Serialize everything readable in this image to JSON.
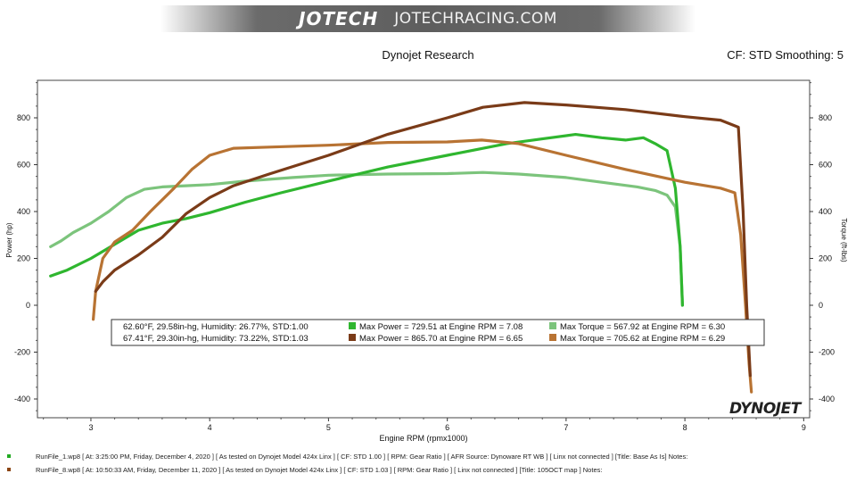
{
  "banner": {
    "brand": "JOTECH",
    "url": "JOTECHRACING.COM"
  },
  "header": {
    "title": "Dynojet Research",
    "right": "CF: STD Smoothing: 5"
  },
  "logo": {
    "text": "DYNOJET"
  },
  "footer": [
    {
      "text": "RunFile_1.wp8 [ At: 3:25:00 PM, Friday, December 4, 2020 ] [ As tested on Dynojet Model 424x Linx ] [ CF: STD 1.00 ] [ RPM: Gear Ratio ] [ AFR Source: Dynoware RT WB ] [ Linx not connected ] [Title: Base As Is]  Notes:",
      "color": "#22aa22"
    },
    {
      "text": "RunFile_8.wp8 [ At: 10:50:33 AM, Friday, December 11, 2020 ] [ As tested on Dynojet Model 424x Linx ] [ CF: STD 1.03 ] [ RPM: Gear Ratio ] [ Linx not connected ] [Title: 105OCT map ]  Notes:",
      "color": "#8b4513"
    }
  ],
  "chart_data": {
    "type": "line",
    "xlabel": "Engine RPM (rpmx1000)",
    "ylabel": "Power (hp)",
    "y2label": "Torque (ft-lbs)",
    "xlim": [
      2.55,
      9.05
    ],
    "ylim": [
      -480,
      960
    ],
    "xticks": [
      3,
      4,
      5,
      6,
      7,
      8,
      9
    ],
    "yticks": [
      -400,
      -200,
      0,
      200,
      400,
      600,
      800
    ],
    "grid": false,
    "colors": {
      "power1": "#2fb62f",
      "torque1": "#7cc47c",
      "power2": "#7a3b18",
      "torque2": "#b87333"
    },
    "series": [
      {
        "key": "torque1",
        "axis": "torque",
        "x": [
          2.66,
          2.75,
          2.85,
          3.0,
          3.15,
          3.3,
          3.45,
          3.6,
          3.8,
          4.0,
          4.3,
          4.7,
          5.0,
          5.5,
          6.0,
          6.3,
          6.6,
          7.0,
          7.3,
          7.6,
          7.75,
          7.85,
          7.92,
          7.96,
          7.98
        ],
        "y": [
          250,
          275,
          310,
          350,
          400,
          460,
          495,
          505,
          510,
          515,
          530,
          545,
          555,
          560,
          562,
          567,
          560,
          545,
          525,
          505,
          490,
          470,
          420,
          250,
          0
        ]
      },
      {
        "key": "power1",
        "axis": "power",
        "x": [
          2.66,
          2.8,
          3.0,
          3.2,
          3.4,
          3.6,
          3.8,
          4.0,
          4.3,
          4.6,
          5.0,
          5.5,
          6.0,
          6.5,
          6.8,
          7.08,
          7.3,
          7.5,
          7.65,
          7.75,
          7.85,
          7.92,
          7.96,
          7.98
        ],
        "y": [
          125,
          150,
          200,
          260,
          320,
          350,
          370,
          395,
          440,
          480,
          530,
          590,
          640,
          690,
          710,
          729,
          715,
          705,
          715,
          690,
          660,
          500,
          250,
          0
        ]
      },
      {
        "key": "torque2",
        "axis": "torque",
        "x": [
          3.02,
          3.04,
          3.1,
          3.2,
          3.35,
          3.5,
          3.7,
          3.85,
          4.0,
          4.2,
          4.5,
          5.0,
          5.5,
          6.0,
          6.29,
          6.6,
          7.0,
          7.5,
          8.0,
          8.3,
          8.42,
          8.47,
          8.51,
          8.54,
          8.56
        ],
        "y": [
          -60,
          60,
          200,
          270,
          320,
          400,
          500,
          580,
          640,
          670,
          675,
          683,
          695,
          697,
          705,
          690,
          640,
          580,
          525,
          500,
          480,
          300,
          0,
          -250,
          -370
        ]
      },
      {
        "key": "power2",
        "axis": "power",
        "x": [
          3.04,
          3.1,
          3.2,
          3.4,
          3.6,
          3.8,
          4.0,
          4.2,
          4.5,
          5.0,
          5.5,
          6.0,
          6.3,
          6.65,
          7.0,
          7.5,
          8.0,
          8.3,
          8.45,
          8.49,
          8.52,
          8.55
        ],
        "y": [
          60,
          100,
          150,
          215,
          290,
          390,
          460,
          510,
          560,
          640,
          730,
          800,
          845,
          865,
          855,
          835,
          805,
          790,
          760,
          400,
          0,
          -300
        ]
      }
    ],
    "legend": {
      "rows": [
        {
          "conditions": "62.60°F, 29.58in-hg, Humidity: 26.77%, STD:1.00",
          "power": "Max Power = 729.51 at Engine RPM = 7.08",
          "power_color": "#2fb62f",
          "torque": "Max Torque = 567.92 at Engine RPM = 6.30",
          "torque_color": "#7cc47c"
        },
        {
          "conditions": "67.41°F, 29.30in-hg, Humidity: 73.22%, STD:1.03",
          "power": "Max Power = 865.70 at Engine RPM = 6.65",
          "power_color": "#7a3b18",
          "torque": "Max Torque = 705.62 at Engine RPM = 6.29",
          "torque_color": "#b87333"
        }
      ]
    }
  }
}
